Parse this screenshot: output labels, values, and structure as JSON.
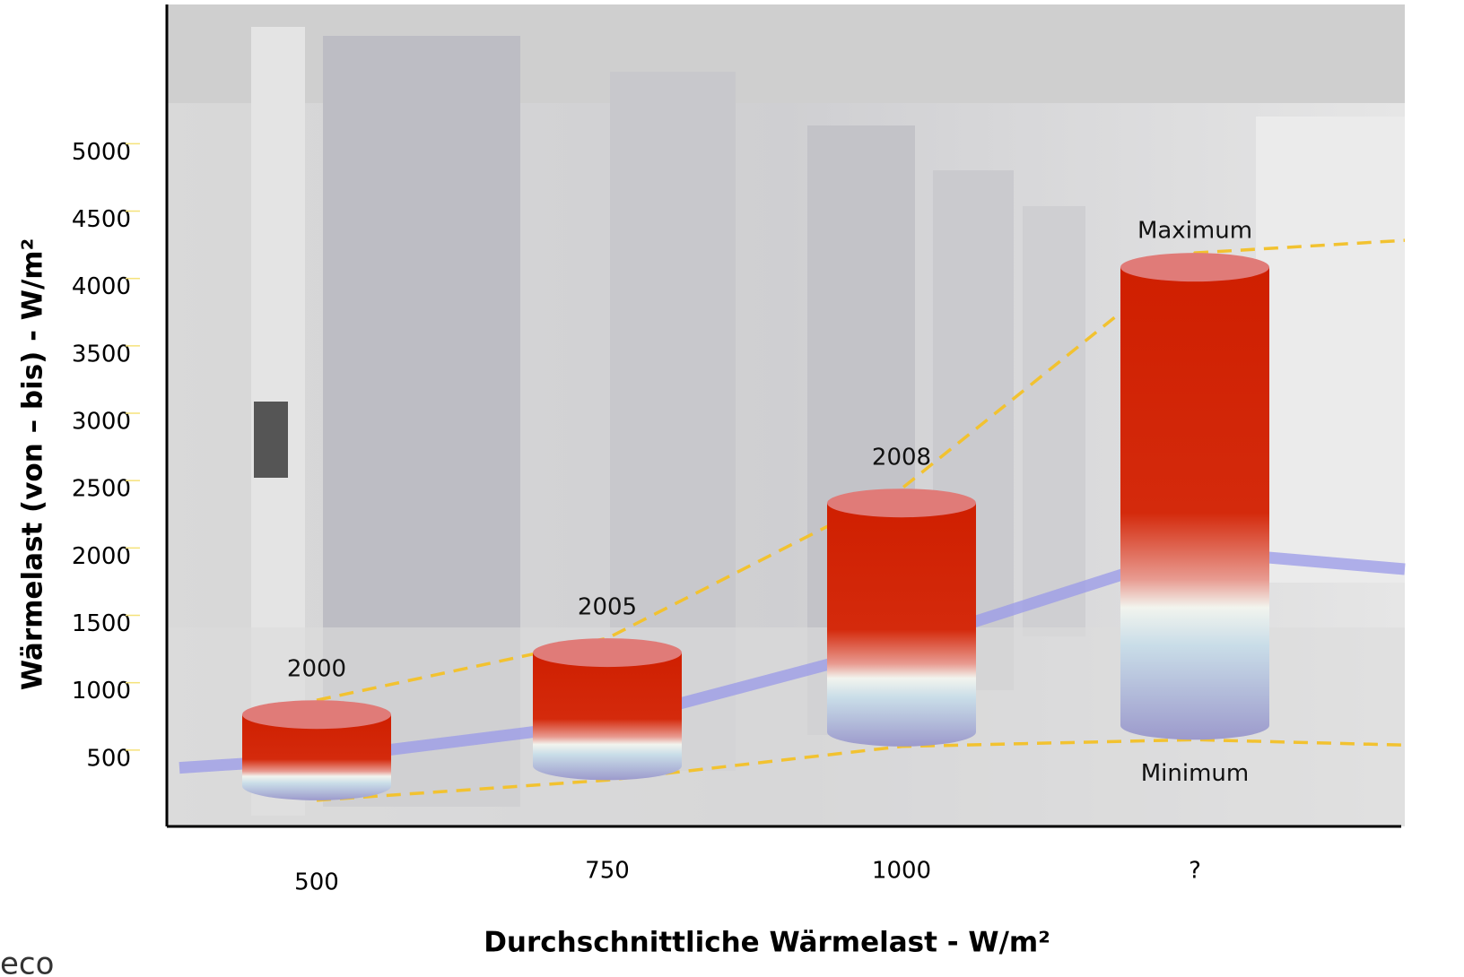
{
  "chart_data": {
    "type": "cylinder_range",
    "x_label": "Durchschnittliche Wärmelast - W/m²",
    "y_label": "Wärmelast (von – bis) - W/m²",
    "categories": [
      "500",
      "750",
      "1000",
      "?"
    ],
    "year_labels": [
      "2000",
      "2005",
      "2008",
      null
    ],
    "series": [
      {
        "name": "Minimum",
        "color": "#9f9fcc",
        "values": [
          300,
          450,
          700,
          750
        ]
      },
      {
        "name": "Maximum",
        "color": "#d42000",
        "values": [
          830,
          1290,
          2400,
          4150
        ]
      }
    ],
    "ylim": [
      0,
      6100
    ],
    "yticks": [
      500,
      1000,
      1500,
      2000,
      2500,
      3000,
      3500,
      4000,
      4500,
      5000
    ],
    "logo": "eco"
  }
}
